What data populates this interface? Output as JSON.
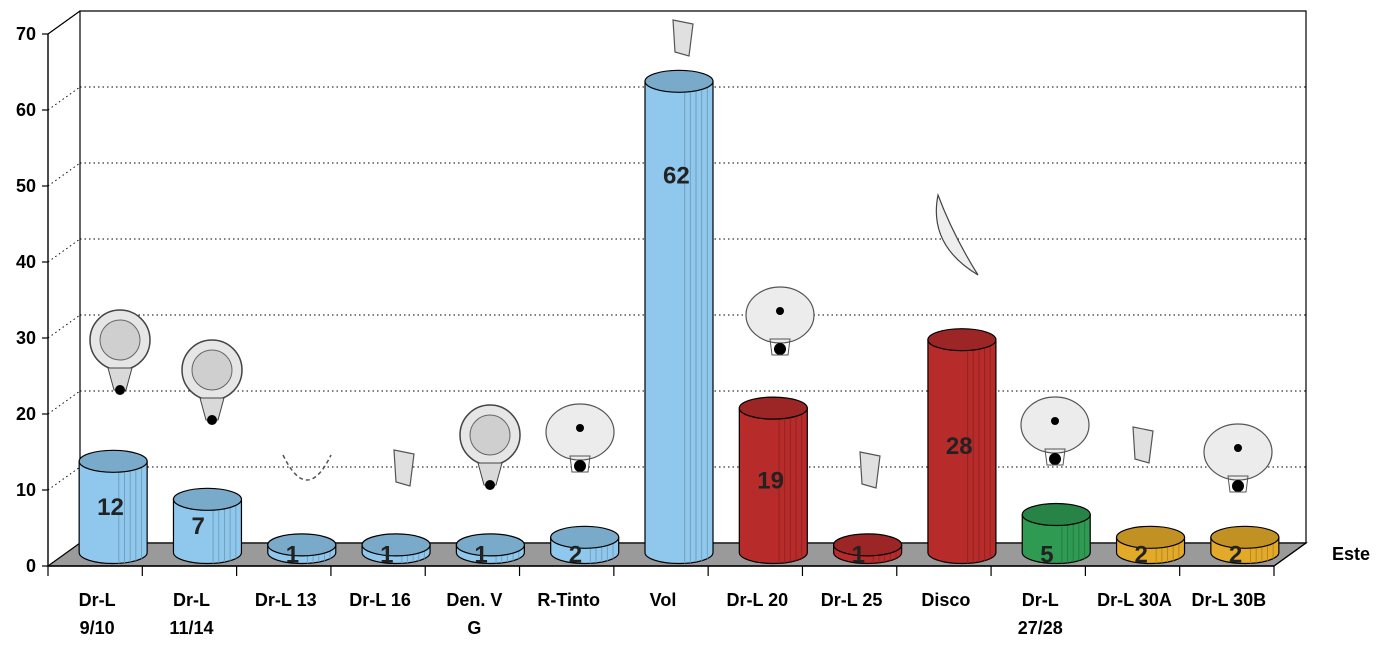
{
  "chart_data": {
    "type": "bar",
    "series_name": "Este",
    "categories": [
      "Dr-L\n9/10",
      "Dr-L\n11/14",
      "Dr-L 13",
      "Dr-L 16",
      "Den. V\nG",
      "R-Tinto",
      "Vol",
      "Dr-L 20",
      "Dr-L 25",
      "Disco",
      "Dr-L\n27/28",
      "Dr-L 30A",
      "Dr-L 30B"
    ],
    "values": [
      12,
      7,
      1,
      1,
      1,
      2,
      62,
      19,
      1,
      28,
      5,
      2,
      2
    ],
    "bar_colors": [
      "#8fc8ec",
      "#8fc8ec",
      "#8fc8ec",
      "#8fc8ec",
      "#8fc8ec",
      "#8fc8ec",
      "#8fc8ec",
      "#b82b2b",
      "#b82b2b",
      "#b82b2b",
      "#2e9a52",
      "#e3aa2a",
      "#e3aa2a"
    ],
    "ylim": [
      0,
      70
    ],
    "yticks": [
      0,
      10,
      20,
      30,
      40,
      50,
      60,
      70
    ],
    "grid": true,
    "style": "3d-cylinder",
    "floor_color": "#9a9a9a"
  }
}
